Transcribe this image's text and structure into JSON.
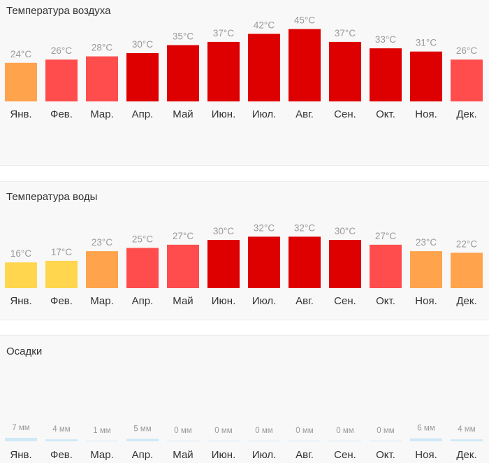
{
  "months": [
    "Янв.",
    "Фев.",
    "Мар.",
    "Апр.",
    "Май",
    "Июн.",
    "Июл.",
    "Авг.",
    "Сен.",
    "Окт.",
    "Ноя.",
    "Дек."
  ],
  "air": {
    "title": "Температура воздуха",
    "unit": "°C",
    "values": [
      24,
      26,
      28,
      30,
      35,
      37,
      42,
      45,
      37,
      33,
      31,
      26
    ],
    "labels": [
      "24°C",
      "26°C",
      "28°C",
      "30°C",
      "35°C",
      "37°C",
      "42°C",
      "45°C",
      "37°C",
      "33°C",
      "31°C",
      "26°C"
    ],
    "colors": [
      "#ffa34d",
      "#ff4d4d",
      "#ff4d4d",
      "#de0000",
      "#de0000",
      "#de0000",
      "#de0000",
      "#de0000",
      "#de0000",
      "#de0000",
      "#de0000",
      "#ff4d4d"
    ]
  },
  "water": {
    "title": "Температура воды",
    "unit": "°C",
    "values": [
      16,
      17,
      23,
      25,
      27,
      30,
      32,
      32,
      30,
      27,
      23,
      22
    ],
    "labels": [
      "16°C",
      "17°C",
      "23°C",
      "25°C",
      "27°C",
      "30°C",
      "32°C",
      "32°C",
      "30°C",
      "27°C",
      "23°C",
      "22°C"
    ],
    "colors": [
      "#ffd64d",
      "#ffd64d",
      "#ffa34d",
      "#ff4d4d",
      "#ff4d4d",
      "#de0000",
      "#de0000",
      "#de0000",
      "#de0000",
      "#ff4d4d",
      "#ffa34d",
      "#ffa34d"
    ]
  },
  "rain": {
    "title": "Осадки",
    "unit": "мм",
    "values": [
      7,
      4,
      1,
      5,
      0,
      0,
      0,
      0,
      0,
      0,
      6,
      4
    ],
    "labels": [
      "7 мм",
      "4 мм",
      "1 мм",
      "5 мм",
      "0 мм",
      "0 мм",
      "0 мм",
      "0 мм",
      "0 мм",
      "0 мм",
      "6 мм",
      "4 мм"
    ],
    "color": "#cfe9f7"
  },
  "chart_data": [
    {
      "type": "bar",
      "title": "Температура воздуха",
      "categories": [
        "Янв.",
        "Фев.",
        "Мар.",
        "Апр.",
        "Май",
        "Июн.",
        "Июл.",
        "Авг.",
        "Сен.",
        "Окт.",
        "Ноя.",
        "Дек."
      ],
      "values": [
        24,
        26,
        28,
        30,
        35,
        37,
        42,
        45,
        37,
        33,
        31,
        26
      ],
      "ylabel": "°C"
    },
    {
      "type": "bar",
      "title": "Температура воды",
      "categories": [
        "Янв.",
        "Фев.",
        "Мар.",
        "Апр.",
        "Май",
        "Июн.",
        "Июл.",
        "Авг.",
        "Сен.",
        "Окт.",
        "Ноя.",
        "Дек."
      ],
      "values": [
        16,
        17,
        23,
        25,
        27,
        30,
        32,
        32,
        30,
        27,
        23,
        22
      ],
      "ylabel": "°C"
    },
    {
      "type": "bar",
      "title": "Осадки",
      "categories": [
        "Янв.",
        "Фев.",
        "Мар.",
        "Апр.",
        "Май",
        "Июн.",
        "Июл.",
        "Авг.",
        "Сен.",
        "Окт.",
        "Ноя.",
        "Дек."
      ],
      "values": [
        7,
        4,
        1,
        5,
        0,
        0,
        0,
        0,
        0,
        0,
        6,
        4
      ],
      "ylabel": "мм"
    }
  ]
}
